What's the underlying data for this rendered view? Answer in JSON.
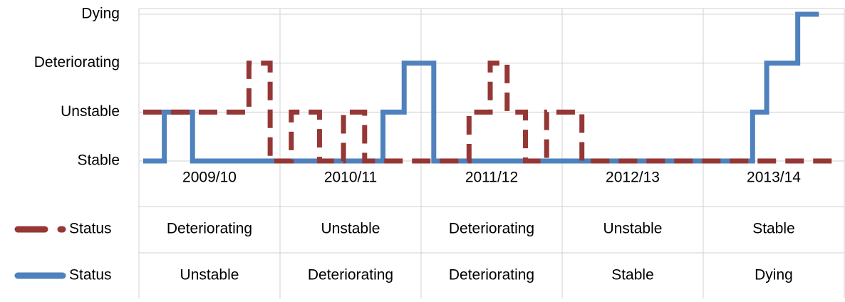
{
  "chart_data": {
    "type": "line",
    "step": true,
    "grid": true,
    "xlim": [
      0,
      5
    ],
    "xticks": [
      {
        "value": 0.5,
        "label": "2009/10"
      },
      {
        "value": 1.5,
        "label": "2010/11"
      },
      {
        "value": 2.5,
        "label": "2011/12"
      },
      {
        "value": 3.5,
        "label": "2012/13"
      },
      {
        "value": 4.5,
        "label": "2013/14"
      }
    ],
    "ylim": [
      0,
      3
    ],
    "yticks": [
      {
        "value": 0,
        "label": "Stable"
      },
      {
        "value": 1,
        "label": "Unstable"
      },
      {
        "value": 2,
        "label": "Deteriorating"
      },
      {
        "value": 3,
        "label": "Dying"
      }
    ],
    "series": [
      {
        "name": "Status",
        "color": "#953735",
        "dash": true,
        "x": [
          0.03,
          0.78,
          0.78,
          0.93,
          0.93,
          1.08,
          1.08,
          1.28,
          1.28,
          1.45,
          1.45,
          1.6,
          1.6,
          2.34,
          2.34,
          2.49,
          2.49,
          2.61,
          2.61,
          2.74,
          2.74,
          2.89,
          2.89,
          3.14,
          3.14,
          4.95
        ],
        "values": [
          1,
          1,
          2,
          2,
          0,
          0,
          1,
          1,
          0,
          0,
          1,
          1,
          0,
          0,
          1,
          1,
          2,
          2,
          1,
          1,
          0,
          0,
          1,
          1,
          0,
          0
        ],
        "table_values": [
          "Deteriorating",
          "Unstable",
          "Deteriorating",
          "Unstable",
          "Stable"
        ]
      },
      {
        "name": "Status",
        "color": "#4f81bd",
        "dash": false,
        "x": [
          0.03,
          0.18,
          0.18,
          0.38,
          0.38,
          1.73,
          1.73,
          1.88,
          1.88,
          2.09,
          2.09,
          4.35,
          4.35,
          4.45,
          4.45,
          4.67,
          4.67,
          4.82
        ],
        "values": [
          0,
          0,
          1,
          1,
          0,
          0,
          1,
          1,
          2,
          2,
          0,
          0,
          1,
          1,
          2,
          2,
          3,
          3
        ],
        "table_values": [
          "Unstable",
          "Deteriorating",
          "Deteriorating",
          "Stable",
          "Dying"
        ]
      }
    ]
  }
}
